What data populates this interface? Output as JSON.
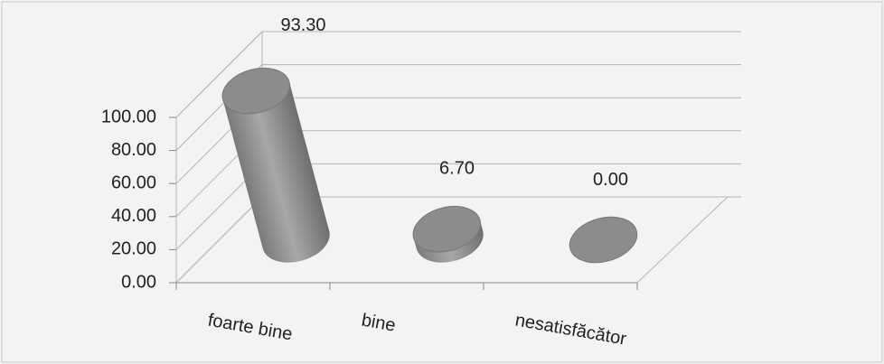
{
  "chart_data": {
    "type": "bar3d",
    "categories": [
      "foarte bine",
      "bine",
      "nesatisfăcător"
    ],
    "values": [
      93.3,
      6.7,
      0.0
    ],
    "value_labels": [
      "93.30",
      "6.70",
      "0.00"
    ],
    "color": "#8c8c8c",
    "ylim": [
      0,
      100
    ],
    "yticks": [
      {
        "value": 0,
        "label": "0.00"
      },
      {
        "value": 20,
        "label": "20.00"
      },
      {
        "value": 40,
        "label": "40.00"
      },
      {
        "value": 60,
        "label": "60.00"
      },
      {
        "value": 80,
        "label": "80.00"
      },
      {
        "value": 100,
        "label": "100.00"
      }
    ],
    "grid": true
  }
}
